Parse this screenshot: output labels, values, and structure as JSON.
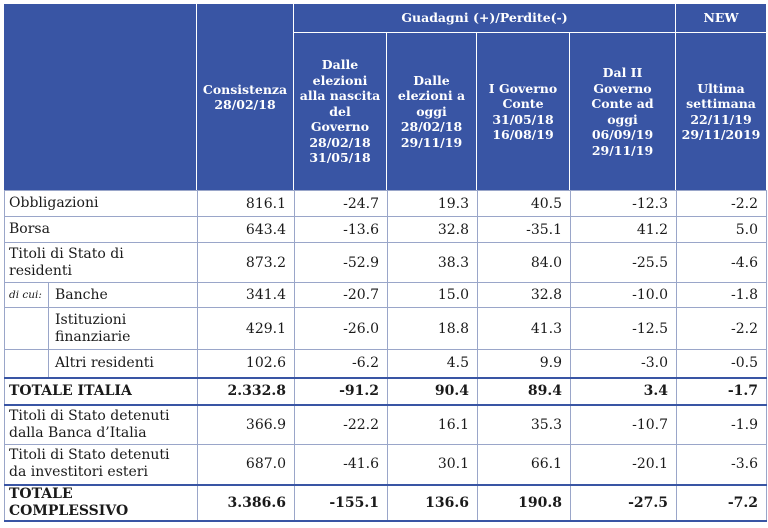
{
  "header": {
    "group_gains": "Guadagni (+)/Perdite(-)",
    "group_new": "NEW",
    "col_consistenza": "Consistenza\n28/02/18",
    "col_elezioni": "Dalle\nelezioni\nalla nascita\ndel\nGoverno\n28/02/18\n31/05/18",
    "col_dalle_elezioni_oggi": "Dalle\nelezioni a\noggi\n28/02/18\n29/11/19",
    "col_governo_conte": "I Governo\nConte\n31/05/18\n16/08/19",
    "col_governo_conte_ii": "Dal II\nGoverno\nConte ad\noggi\n06/09/19\n29/11/19",
    "col_ultima_settimana": "Ultima\nsettimana\n22/11/19\n29/11/2019"
  },
  "rows": {
    "obbligazioni": {
      "label": "Obbligazioni",
      "v": [
        "816.1",
        "-24.7",
        "19.3",
        "40.5",
        "-12.3",
        "-2.2"
      ]
    },
    "borsa": {
      "label": "Borsa",
      "v": [
        "643.4",
        "-13.6",
        "32.8",
        "-35.1",
        "41.2",
        "5.0"
      ]
    },
    "titoli_residenti": {
      "label": "Titoli di Stato di residenti",
      "v": [
        "873.2",
        "-52.9",
        "38.3",
        "84.0",
        "-25.5",
        "-4.6"
      ]
    },
    "dicui_label": "di cui:",
    "banche": {
      "label": "Banche",
      "v": [
        "341.4",
        "-20.7",
        "15.0",
        "32.8",
        "-10.0",
        "-1.8"
      ]
    },
    "istituzioni": {
      "label": "Istituzioni finanziarie",
      "v": [
        "429.1",
        "-26.0",
        "18.8",
        "41.3",
        "-12.5",
        "-2.2"
      ]
    },
    "altri": {
      "label": "Altri residenti",
      "v": [
        "102.6",
        "-6.2",
        "4.5",
        "9.9",
        "-3.0",
        "-0.5"
      ]
    },
    "totale_italia": {
      "label": "TOTALE ITALIA",
      "v": [
        "2.332.8",
        "-91.2",
        "90.4",
        "89.4",
        "3.4",
        "-1.7"
      ]
    },
    "banca_italia": {
      "label": "Titoli di Stato detenuti dalla Banca d’Italia",
      "v": [
        "366.9",
        "-22.2",
        "16.1",
        "35.3",
        "-10.7",
        "-1.9"
      ]
    },
    "esteri": {
      "label": "Titoli di Stato detenuti da investitori esteri",
      "v": [
        "687.0",
        "-41.6",
        "30.1",
        "66.1",
        "-20.1",
        "-3.6"
      ]
    },
    "totale_complessivo": {
      "label": "TOTALE COMPLESSIVO",
      "v": [
        "3.386.6",
        "-155.1",
        "136.6",
        "190.8",
        "-27.5",
        "-7.2"
      ]
    }
  },
  "colors": {
    "header_bg": "#3955a4",
    "header_text": "#ffffff",
    "grid": "#9aa6c9"
  }
}
